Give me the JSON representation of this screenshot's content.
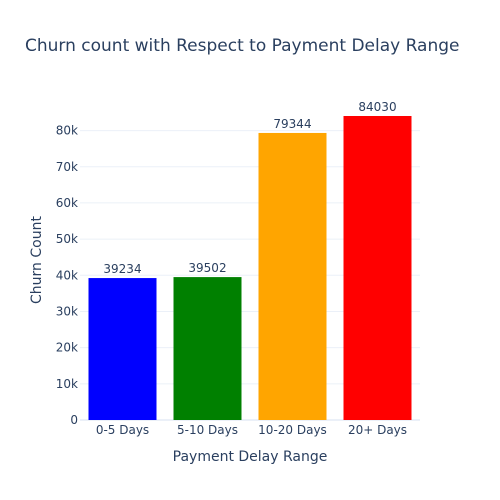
{
  "chart_data": {
    "type": "bar",
    "title": "Churn count with Respect to Payment Delay Range",
    "xlabel": "Payment Delay Range",
    "ylabel": "Churn Count",
    "categories": [
      "0-5 Days",
      "5-10 Days",
      "10-20 Days",
      "20+ Days"
    ],
    "values": [
      39234,
      39502,
      79344,
      84030
    ],
    "bar_colors": [
      "#0000ff",
      "#008000",
      "#ffa500",
      "#ff0000"
    ],
    "data_labels": [
      "39234",
      "39502",
      "79344",
      "84030"
    ],
    "ylim": [
      0,
      88453
    ],
    "yticks": [
      0,
      10000,
      20000,
      30000,
      40000,
      50000,
      60000,
      70000,
      80000
    ],
    "ytick_labels": [
      "0",
      "10k",
      "20k",
      "30k",
      "40k",
      "50k",
      "60k",
      "70k",
      "80k"
    ],
    "grid": true,
    "legend": "none"
  }
}
